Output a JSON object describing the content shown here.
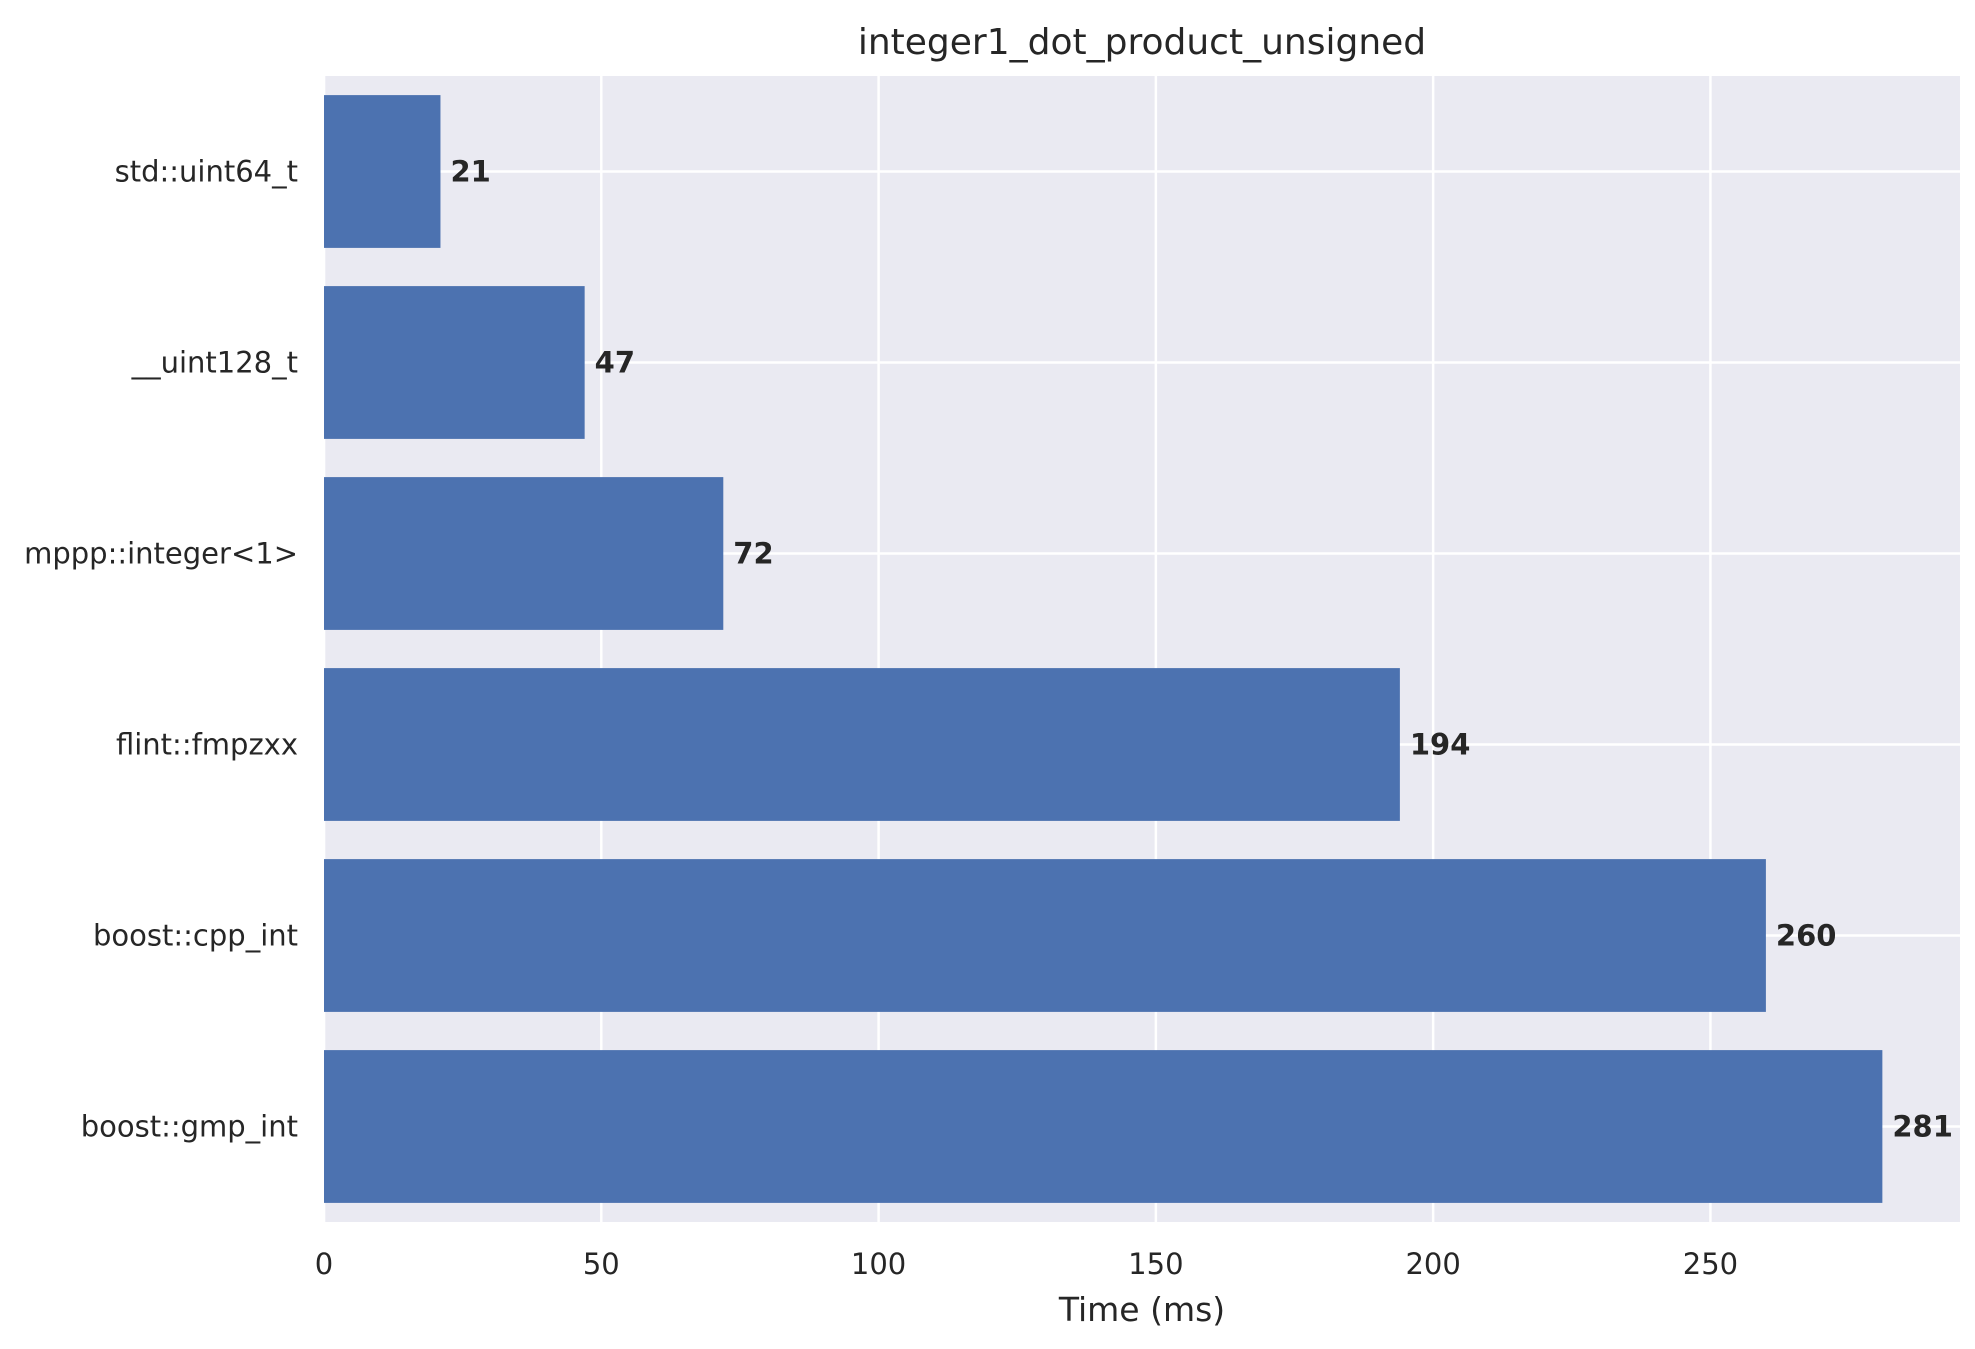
{
  "chart_data": {
    "type": "bar",
    "orientation": "horizontal",
    "title": "integer1_dot_product_unsigned",
    "xlabel": "Time (ms)",
    "ylabel": "",
    "categories": [
      "std::uint64_t",
      "__uint128_t",
      "mppp::integer<1>",
      "flint::fmpzxx",
      "boost::cpp_int",
      "boost::gmp_int"
    ],
    "values": [
      21,
      47,
      72,
      194,
      260,
      281
    ],
    "value_labels": [
      "21",
      "47",
      "72",
      "194",
      "260",
      "281"
    ],
    "xlim": [
      0,
      295
    ],
    "xticks": [
      0,
      50,
      100,
      150,
      200,
      250
    ],
    "grid": true,
    "legend": "none",
    "colors": {
      "bar": "#4c72b0",
      "plot_background": "#eaeaf2",
      "grid": "#ffffff",
      "text": "#262626"
    }
  }
}
